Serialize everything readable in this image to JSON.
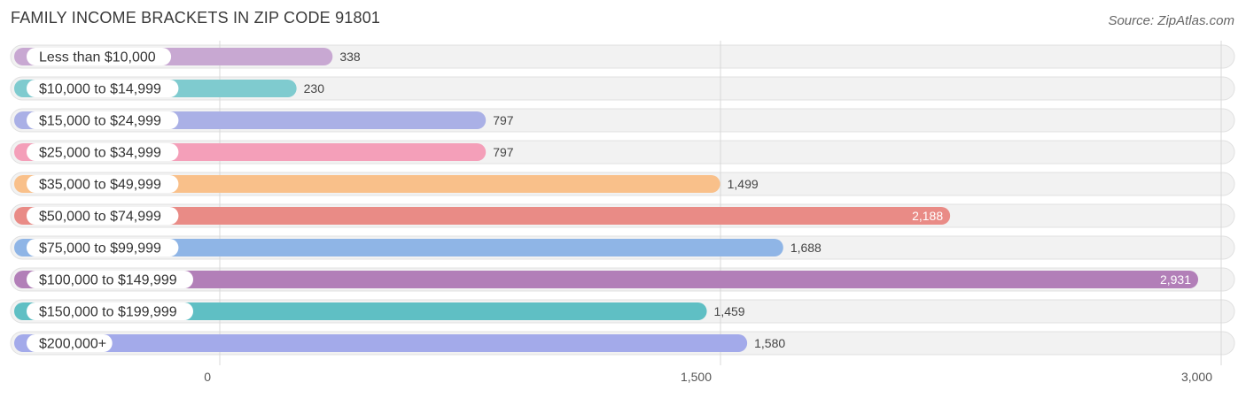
{
  "title": "FAMILY INCOME BRACKETS IN ZIP CODE 91801",
  "source": "Source: ZipAtlas.com",
  "chart_data": {
    "type": "bar",
    "orientation": "horizontal",
    "title": "FAMILY INCOME BRACKETS IN ZIP CODE 91801",
    "categories": [
      "Less than $10,000",
      "$10,000 to $14,999",
      "$15,000 to $24,999",
      "$25,000 to $34,999",
      "$35,000 to $49,999",
      "$50,000 to $74,999",
      "$75,000 to $99,999",
      "$100,000 to $149,999",
      "$150,000 to $199,999",
      "$200,000+"
    ],
    "values": [
      338,
      230,
      797,
      797,
      1499,
      2188,
      1688,
      2931,
      1459,
      1580
    ],
    "value_labels": [
      "338",
      "230",
      "797",
      "797",
      "1,499",
      "2,188",
      "1,688",
      "2,931",
      "1,459",
      "1,580"
    ],
    "colors": [
      "#c8a8d2",
      "#7fcbcf",
      "#aab0e6",
      "#f49fb9",
      "#f9c08a",
      "#e98b86",
      "#8fb5e6",
      "#b27fb8",
      "#5fbfc4",
      "#a3aaea"
    ],
    "xlim": [
      0,
      3000
    ],
    "xticks": [
      0,
      1500,
      3000
    ],
    "xtick_labels": [
      "0",
      "1,500",
      "3,000"
    ],
    "grid": true,
    "xlabel": "",
    "ylabel": ""
  }
}
